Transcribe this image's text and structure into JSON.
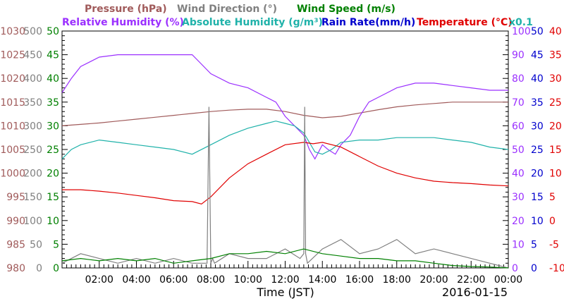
{
  "chart_data": {
    "type": "line",
    "legend": [
      {
        "text": "Pressure (hPa)",
        "color": "#a05a5a"
      },
      {
        "text": "Wind Direction (°)",
        "color": "#808080"
      },
      {
        "text": "Wind Speed (m/s)",
        "color": "#008000"
      },
      {
        "text": "Relative Humidity (%)",
        "color": "#9b30ff"
      },
      {
        "text": "Absolute Humidity (g/m³)",
        "color": "#20b2aa"
      },
      {
        "text": "Rain Rate(mm/h)",
        "color": "#0000cd"
      },
      {
        "text": "Temperature (°C)",
        "color": "#e00000"
      }
    ],
    "rain_multiplier": "x0.1",
    "xlabel": "Time (JST)",
    "date": "2016-01-15",
    "x_ticks": [
      "02:00",
      "04:00",
      "06:00",
      "08:00",
      "10:00",
      "12:00",
      "14:00",
      "16:00",
      "18:00",
      "20:00",
      "22:00",
      "00:00"
    ],
    "xlim": [
      0,
      24
    ],
    "axes": {
      "pressure": {
        "ticks": [
          "1030",
          "1025",
          "1020",
          "1015",
          "1010",
          "1005",
          "1000",
          "995",
          "990",
          "985",
          "980"
        ],
        "ylim": [
          980,
          1030
        ],
        "color": "#a05a5a"
      },
      "wind_direction": {
        "ticks": [
          "500",
          "450",
          "400",
          "350",
          "300",
          "250",
          "200",
          "150",
          "100",
          "50",
          "0"
        ],
        "ylim": [
          0,
          500
        ],
        "color": "#808080"
      },
      "wind_speed": {
        "ticks": [
          "50",
          "45",
          "40",
          "35",
          "30",
          "25",
          "20",
          "15",
          "10",
          "5",
          "0"
        ],
        "ylim": [
          0,
          50
        ],
        "color": "#008000"
      },
      "relative_humidity": {
        "ticks": [
          "100",
          "90",
          "80",
          "70",
          "60",
          "50",
          "40",
          "30",
          "20",
          "10",
          "0"
        ],
        "ylim": [
          0,
          100
        ],
        "color": "#9b30ff"
      },
      "rain_rate": {
        "ticks": [
          "50",
          "45",
          "40",
          "35",
          "30",
          "25",
          "20",
          "15",
          "10",
          "5",
          "0"
        ],
        "ylim": [
          0,
          50
        ],
        "color": "#0000cd"
      },
      "temperature": {
        "ticks": [
          "40",
          "35",
          "30",
          "25",
          "20",
          "15",
          "10",
          "5",
          "0",
          "-5",
          "-10"
        ],
        "ylim": [
          -10,
          40
        ],
        "color": "#e00000"
      }
    },
    "series": [
      {
        "name": "Pressure (hPa)",
        "axis": "pressure",
        "color": "#a05a5a",
        "x": [
          0,
          1,
          2,
          3,
          4,
          5,
          6,
          7,
          8,
          9,
          10,
          11,
          12,
          13,
          14,
          15,
          16,
          17,
          18,
          19,
          20,
          21,
          22,
          23,
          24
        ],
        "y": [
          1010,
          1010.3,
          1010.6,
          1011,
          1011.4,
          1011.8,
          1012.2,
          1012.6,
          1013,
          1013.3,
          1013.5,
          1013.5,
          1013,
          1012.2,
          1011.7,
          1012,
          1012.7,
          1013.4,
          1014,
          1014.4,
          1014.7,
          1015,
          1015,
          1015,
          1015
        ]
      },
      {
        "name": "Relative Humidity (%)",
        "axis": "relative_humidity",
        "color": "#9b30ff",
        "x": [
          0,
          0.5,
          1,
          1.5,
          2,
          3,
          4,
          5,
          6,
          7,
          7.5,
          8,
          9,
          10,
          11,
          11.5,
          12,
          12.5,
          13,
          13.3,
          13.6,
          14,
          14.3,
          14.7,
          15,
          15.5,
          16,
          16.5,
          17,
          17.5,
          18,
          19,
          20,
          21,
          22,
          23,
          24
        ],
        "y": [
          74,
          80,
          85,
          87,
          89,
          90,
          90,
          90,
          90,
          90,
          86,
          82,
          78,
          76,
          72,
          70,
          64,
          60,
          56,
          50,
          46,
          52,
          50,
          48,
          52,
          56,
          64,
          70,
          72,
          74,
          76,
          78,
          78,
          77,
          76,
          75,
          75
        ]
      },
      {
        "name": "Absolute Humidity (g/m³)",
        "axis": "relative_humidity",
        "color": "#20b2aa",
        "x": [
          0,
          0.5,
          1,
          1.5,
          2,
          3,
          4,
          5,
          6,
          7,
          8,
          9,
          10,
          11,
          11.5,
          12,
          12.5,
          13,
          13.3,
          13.6,
          14,
          14.5,
          15,
          16,
          17,
          18,
          19,
          20,
          21,
          22,
          23,
          24
        ],
        "y": [
          46,
          50,
          52,
          53,
          54,
          53,
          52,
          51,
          50,
          48,
          52,
          56,
          59,
          61,
          62,
          61,
          60,
          57,
          53,
          49,
          48,
          50,
          53,
          54,
          54,
          55,
          55,
          55,
          54,
          53,
          51,
          50
        ]
      },
      {
        "name": "Temperature (°C)",
        "axis": "temperature",
        "color": "#e00000",
        "x": [
          0,
          1,
          2,
          3,
          4,
          5,
          6,
          7,
          7.5,
          8,
          9,
          10,
          11,
          12,
          13,
          13.5,
          14,
          15,
          16,
          17,
          18,
          19,
          20,
          21,
          22,
          23,
          24
        ],
        "y": [
          6.5,
          6.5,
          6.2,
          5.8,
          5.3,
          4.8,
          4.2,
          4.0,
          3.5,
          5.0,
          9.0,
          12.0,
          14.0,
          16.0,
          16.5,
          16.2,
          16.5,
          15.5,
          13.5,
          11.5,
          10.0,
          9.0,
          8.3,
          8.0,
          7.8,
          7.5,
          7.3
        ]
      },
      {
        "name": "Wind Direction (°)",
        "axis": "wind_direction",
        "color": "#808080",
        "x": [
          0,
          1,
          2,
          3,
          4,
          5,
          6,
          7,
          7.8,
          7.9,
          8.0,
          8.1,
          8.2,
          9,
          10,
          11,
          12,
          12.8,
          13,
          13.05,
          13.1,
          13.2,
          14,
          15,
          16,
          17,
          18,
          19,
          20,
          21,
          22,
          23,
          24
        ],
        "y": [
          10,
          30,
          20,
          10,
          20,
          10,
          20,
          10,
          10,
          340,
          10,
          20,
          10,
          30,
          20,
          20,
          40,
          20,
          30,
          340,
          30,
          10,
          40,
          60,
          30,
          40,
          60,
          30,
          40,
          30,
          20,
          10,
          0
        ]
      },
      {
        "name": "Wind Speed (m/s)",
        "axis": "wind_speed",
        "color": "#008000",
        "x": [
          0,
          1,
          2,
          3,
          4,
          5,
          6,
          7,
          8,
          9,
          10,
          11,
          12,
          13,
          14,
          15,
          16,
          17,
          18,
          19,
          20,
          21,
          22,
          23,
          24
        ],
        "y": [
          1.5,
          2,
          1.5,
          2,
          1.5,
          2,
          1,
          1.5,
          2,
          3,
          3,
          3.5,
          3,
          4,
          3,
          2.5,
          2,
          2,
          1.5,
          1.5,
          1,
          0.5,
          0.3,
          0.2,
          0
        ]
      }
    ]
  }
}
